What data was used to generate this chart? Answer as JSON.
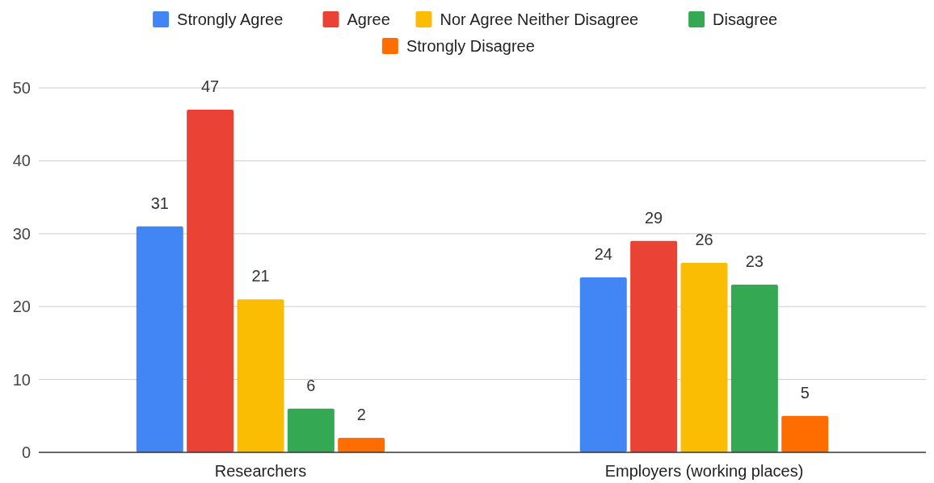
{
  "chart_data": {
    "type": "bar",
    "categories": [
      "Researchers",
      "Employers (working places)"
    ],
    "series": [
      {
        "name": "Strongly Agree",
        "color": "#4285f4",
        "values": [
          31,
          24
        ]
      },
      {
        "name": "Agree",
        "color": "#ea4335",
        "values": [
          47,
          29
        ]
      },
      {
        "name": "Nor Agree Neither Disagree",
        "color": "#fbbc04",
        "values": [
          21,
          26
        ]
      },
      {
        "name": "Disagree",
        "color": "#34a853",
        "values": [
          6,
          23
        ]
      },
      {
        "name": "Strongly Disagree",
        "color": "#ff6d01",
        "values": [
          2,
          5
        ]
      }
    ],
    "ylim": [
      0,
      50
    ],
    "yticks": [
      0,
      10,
      20,
      30,
      40,
      50
    ],
    "grid": "y",
    "legend": "top",
    "data_labels": true
  }
}
